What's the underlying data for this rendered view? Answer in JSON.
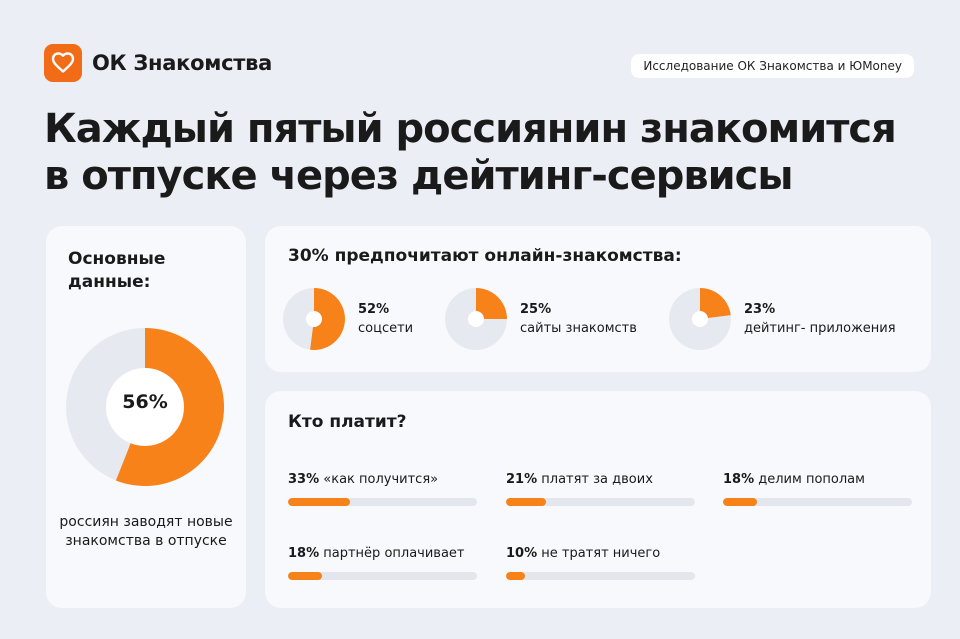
{
  "brand": {
    "name": "ОК Знакомства",
    "accent_color": "#f78219",
    "logo_color": "#f26b16",
    "icon": "heart-chat-icon"
  },
  "source": "Исследование ОК Знакомства и ЮMoney",
  "headline": {
    "line1": "Каждый пятый россиянин знакомится",
    "line2": "в отпуске через дейтинг-сервисы"
  },
  "main_stat": {
    "title": "Основные данные:",
    "value_label": "56%",
    "caption": "россиян заводят новые знакомства в отпуске"
  },
  "online": {
    "title": "30% предпочитают онлайн-знакомства:",
    "items": [
      {
        "pct": "52%",
        "label": "соцсети"
      },
      {
        "pct": "25%",
        "label": "сайты знакомств"
      },
      {
        "pct": "23%",
        "label": "дейтинг- приложения"
      }
    ]
  },
  "pay": {
    "title": "Кто платит?",
    "items": [
      {
        "pct": "33%",
        "label": "«как получится»"
      },
      {
        "pct": "21%",
        "label": "платят за двоих"
      },
      {
        "pct": "18%",
        "label": "делим пополам"
      },
      {
        "pct": "18%",
        "label": "партнёр оплачивает"
      },
      {
        "pct": "10%",
        "label": "не тратят ничего"
      }
    ]
  },
  "chart_data": [
    {
      "type": "pie",
      "categories": [
        "россиян заводят новые знакомства в отпуске"
      ],
      "values": [
        56
      ]
    },
    {
      "type": "pie",
      "title": "30% предпочитают онлайн-знакомства:",
      "categories": [
        "соцсети",
        "сайты знакомств",
        "дейтинг- приложения"
      ],
      "values": [
        52,
        25,
        23
      ]
    },
    {
      "type": "bar",
      "title": "Кто платит?",
      "categories": [
        "«как получится»",
        "платят за двоих",
        "делим пополам",
        "партнёр оплачивает",
        "не тратят ничего"
      ],
      "values": [
        33,
        21,
        18,
        18,
        10
      ]
    }
  ]
}
